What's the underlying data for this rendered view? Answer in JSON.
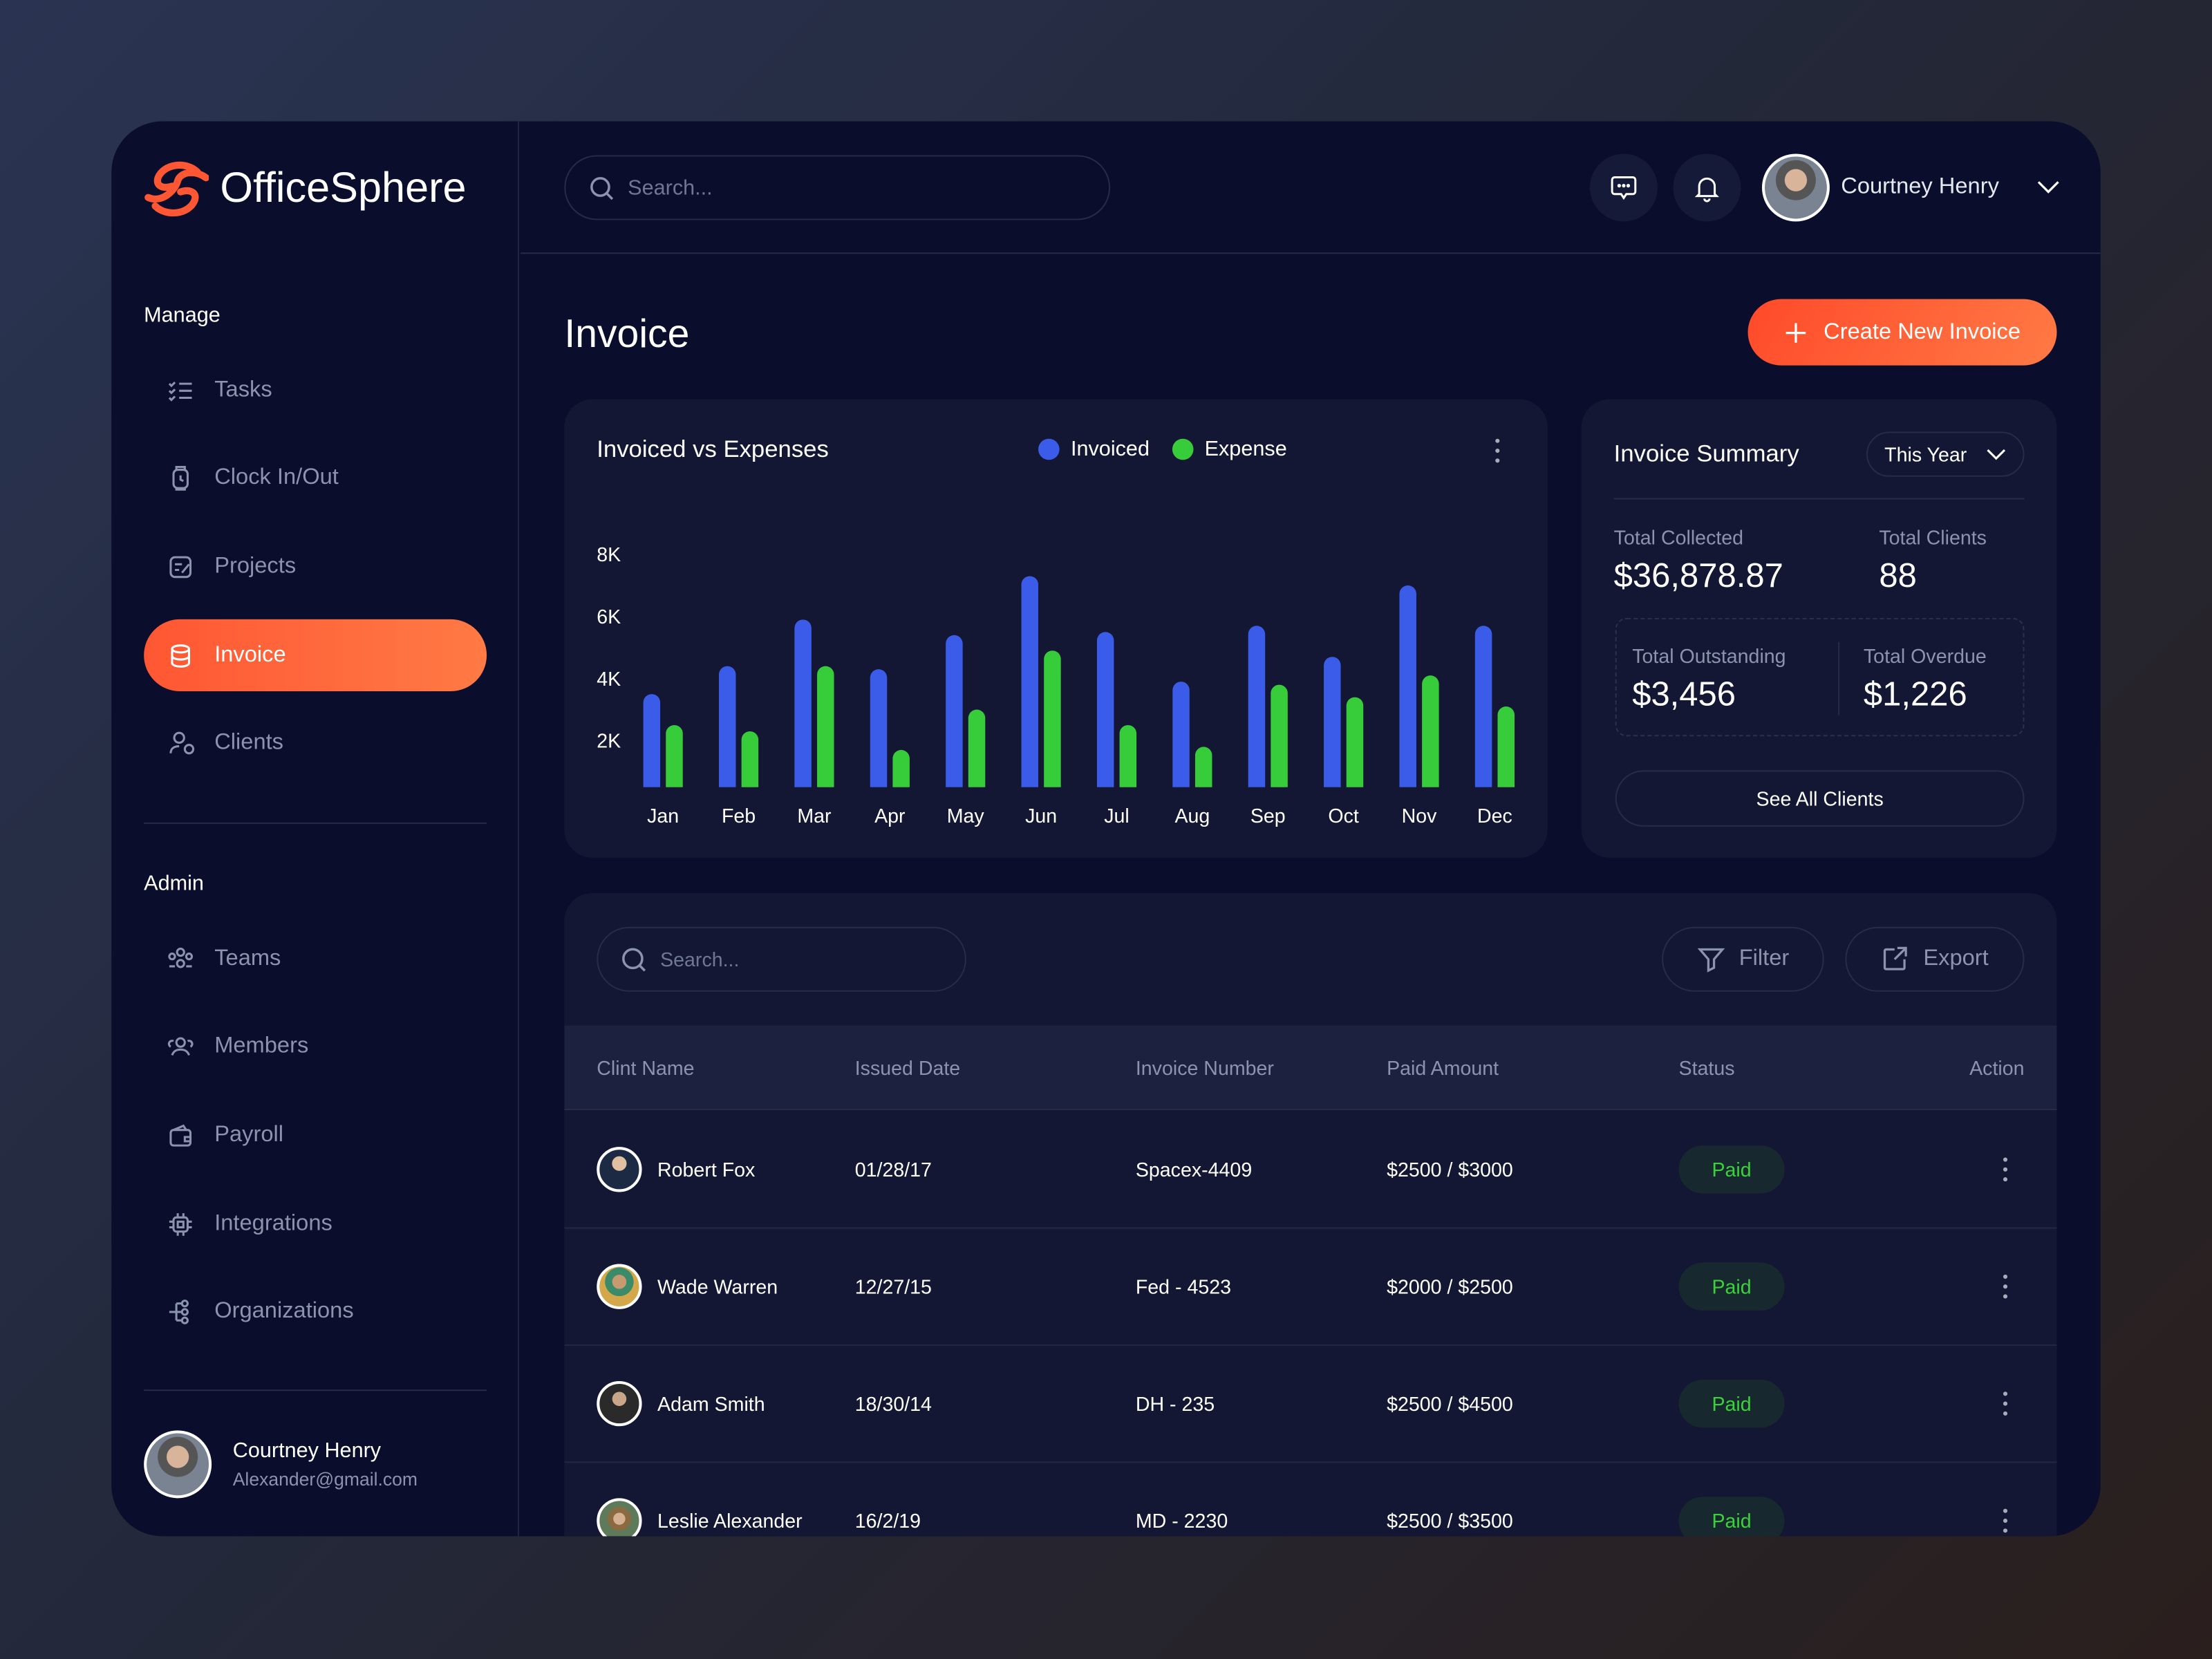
{
  "brand": {
    "name": "OfficeSphere",
    "accent": "#ff5733"
  },
  "sidebar": {
    "manage_label": "Manage",
    "manage_items": [
      {
        "label": "Tasks",
        "icon": "tasks-icon"
      },
      {
        "label": "Clock In/Out",
        "icon": "clock-icon"
      },
      {
        "label": "Projects",
        "icon": "projects-icon"
      },
      {
        "label": "Invoice",
        "icon": "invoice-icon",
        "active": true
      },
      {
        "label": "Clients",
        "icon": "clients-icon"
      }
    ],
    "admin_label": "Admin",
    "admin_items": [
      {
        "label": "Teams",
        "icon": "teams-icon"
      },
      {
        "label": "Members",
        "icon": "members-icon"
      },
      {
        "label": "Payroll",
        "icon": "wallet-icon"
      },
      {
        "label": "Integrations",
        "icon": "chip-icon"
      },
      {
        "label": "Organizations",
        "icon": "organization-icon"
      }
    ],
    "profile": {
      "name": "Courtney Henry",
      "email": "Alexander@gmail.com"
    }
  },
  "header": {
    "search_placeholder": "Search...",
    "user_name": "Courtney Henry"
  },
  "page": {
    "title": "Invoice",
    "create_button": "Create New Invoice"
  },
  "chart_data": {
    "type": "bar",
    "title": "Invoiced vs Expenses",
    "categories": [
      "Jan",
      "Feb",
      "Mar",
      "Apr",
      "May",
      "Jun",
      "Jul",
      "Aug",
      "Sep",
      "Oct",
      "Nov",
      "Dec"
    ],
    "series": [
      {
        "name": "Invoiced",
        "color": "#3b5ce8",
        "values": [
          3500,
          4400,
          5900,
          4300,
          5400,
          7300,
          5500,
          3900,
          5700,
          4700,
          7000,
          5700
        ]
      },
      {
        "name": "Expense",
        "color": "#36cc3a",
        "values": [
          2500,
          2300,
          4400,
          1700,
          3000,
          4900,
          2500,
          1800,
          3800,
          3400,
          4100,
          3100
        ]
      }
    ],
    "yticks": [
      "2K",
      "4K",
      "6K",
      "8K"
    ],
    "ytick_values": [
      2000,
      4000,
      6000,
      8000
    ],
    "ylim": [
      500,
      8000
    ],
    "legend": "top-center",
    "grid": false
  },
  "summary": {
    "title": "Invoice Summary",
    "period": "This Year",
    "total_collected_label": "Total Collected",
    "total_collected": "$36,878.87",
    "total_clients_label": "Total Clients",
    "total_clients": "88",
    "total_outstanding_label": "Total Outstanding",
    "total_outstanding": "$3,456",
    "total_overdue_label": "Total Overdue",
    "total_overdue": "$1,226",
    "see_all": "See All Clients"
  },
  "table": {
    "search_placeholder": "Search...",
    "filter": "Filter",
    "export": "Export",
    "columns": [
      "Clint Name",
      "Issued Date",
      "Invoice Number",
      "Paid Amount",
      "Status",
      "Action"
    ],
    "rows": [
      {
        "name": "Robert Fox",
        "date": "01/28/17",
        "invoice": "Spacex-4409",
        "amount": "$2500 / $3000",
        "status": "Paid"
      },
      {
        "name": "Wade Warren",
        "date": "12/27/15",
        "invoice": "Fed - 4523",
        "amount": "$2000 / $2500",
        "status": "Paid"
      },
      {
        "name": "Adam Smith",
        "date": "18/30/14",
        "invoice": "DH - 235",
        "amount": "$2500 / $4500",
        "status": "Paid"
      },
      {
        "name": "Leslie Alexander",
        "date": "16/2/19",
        "invoice": "MD - 2230",
        "amount": "$2500 / $3500",
        "status": "Paid"
      }
    ]
  }
}
